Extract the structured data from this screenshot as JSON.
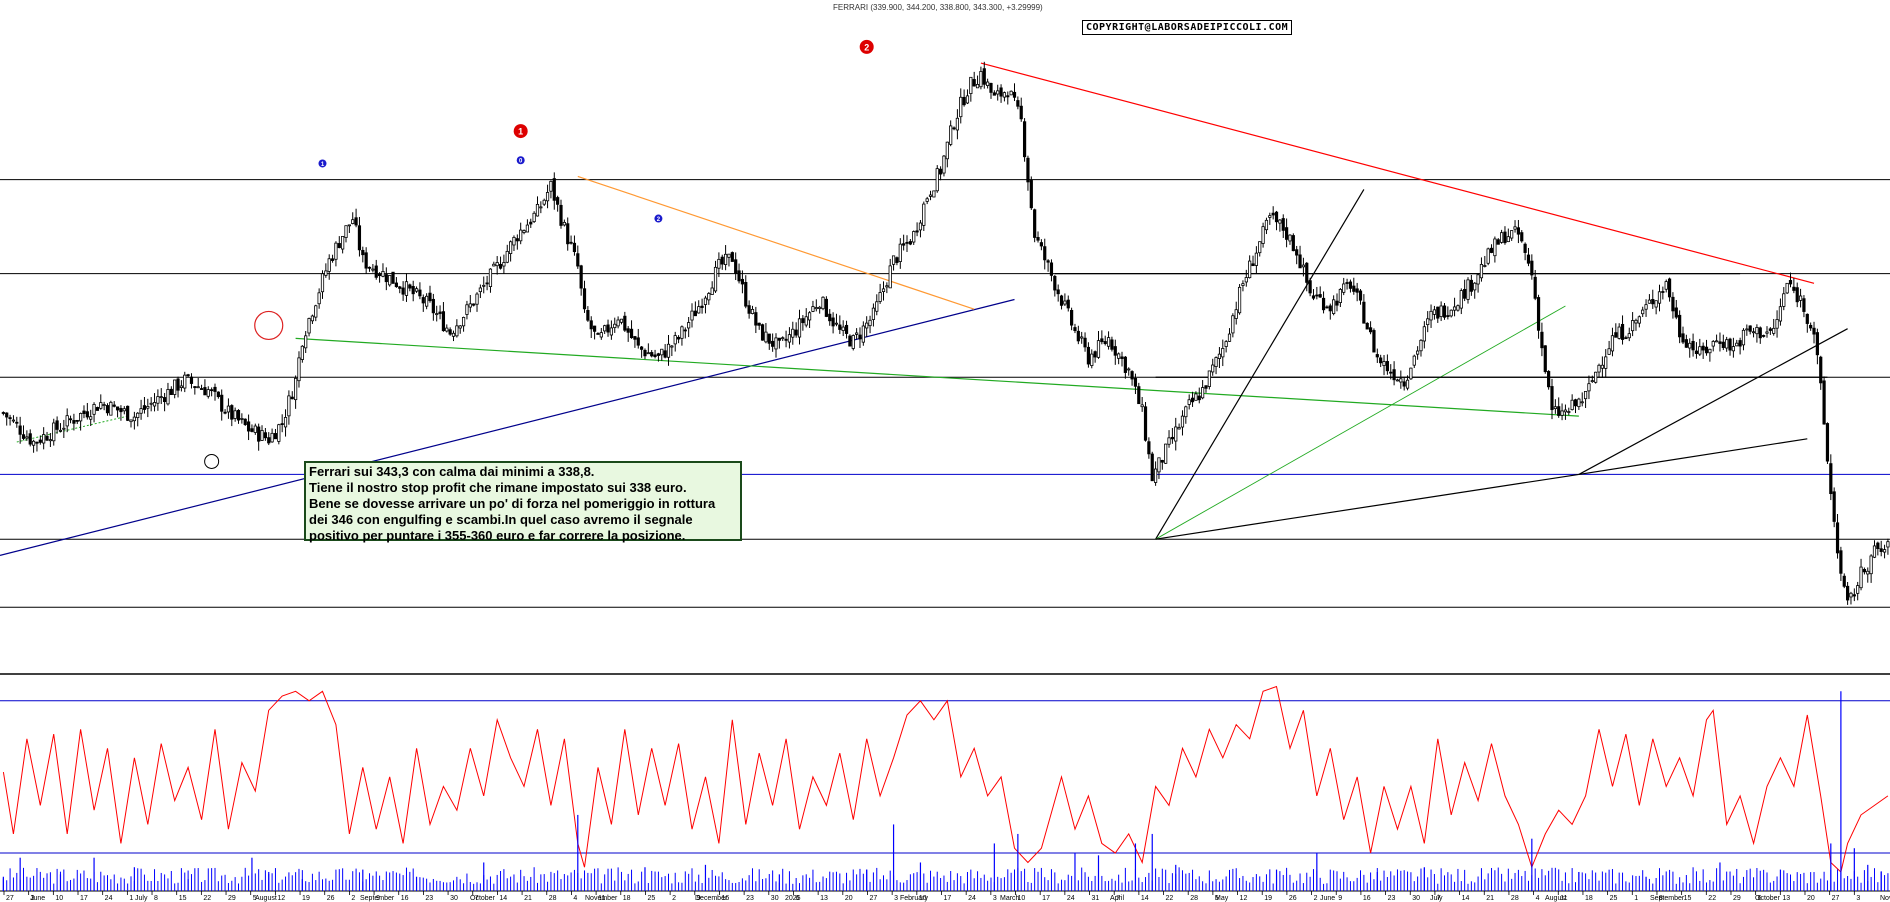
{
  "header": {
    "title": "FERRARI (339.900, 344.200, 338.800, 343.300, +3.29999)",
    "copyright": "COPYRIGHT@LABORSADEIPICCOLI.COM"
  },
  "comment": {
    "lines": [
      "Ferrari sui 343,3 con calma dai minimi a 338,8.",
      "Tiene il nostro stop profit che rimane impostato sui 338 euro.",
      "Bene se dovesse arrivare un po' di forza nel pomeriggio in rottura",
      "dei 346 con engulfing e scambi.In quel caso avremo il segnale",
      "positivo per puntare i 355-360 euro e far correre la posizione."
    ]
  },
  "colors": {
    "candle": "#000000",
    "resistance_trendline": "#ff0000",
    "support_trendline": "#00008b",
    "orange_trendline": "#ff9933",
    "green_trendline": "#22aa22",
    "horizontal_levels_black": "#000000",
    "horizontal_levels_blue": "#0000cc",
    "oscillator": "#ff0000",
    "volume": "#0000ff",
    "comment_bg": "#e8f8e0"
  },
  "wave_labels": [
    {
      "label": "1",
      "style": "blue-small"
    },
    {
      "label": "0",
      "style": "blue-small"
    },
    {
      "label": "1",
      "style": "red-big"
    },
    {
      "label": "2",
      "style": "blue-small"
    },
    {
      "label": "2",
      "style": "red-big"
    }
  ],
  "chart_data": [
    {
      "type": "candlestick",
      "symbol": "FERRARI",
      "ylim": [
        305,
        510
      ],
      "yticks": [
        310,
        315,
        320,
        325,
        330,
        335,
        340,
        345,
        350,
        355,
        360,
        365,
        370,
        375,
        380,
        385,
        390,
        395,
        400,
        405,
        410,
        415,
        420,
        425,
        430,
        435,
        440,
        445,
        450,
        455,
        460,
        465,
        470,
        475,
        480,
        485,
        490,
        495,
        500,
        505
      ],
      "x_day_labels": [
        "27",
        "3",
        "10",
        "17",
        "24",
        "1",
        "8",
        "15",
        "22",
        "29",
        "5",
        "12",
        "19",
        "26",
        "2",
        "9",
        "16",
        "23",
        "30",
        "7",
        "14",
        "21",
        "28",
        "4",
        "11",
        "18",
        "25",
        "2",
        "9",
        "16",
        "23",
        "30",
        "6",
        "13",
        "20",
        "27",
        "3",
        "10",
        "17",
        "24",
        "3",
        "10",
        "17",
        "24",
        "31",
        "7",
        "14",
        "22",
        "28",
        "5",
        "12",
        "19",
        "26",
        "2",
        "9",
        "16",
        "23",
        "30",
        "7",
        "14",
        "21",
        "28",
        "4",
        "11",
        "18",
        "25",
        "1",
        "8",
        "15",
        "22",
        "29",
        "6",
        "13",
        "20",
        "27",
        "3"
      ],
      "x_month_labels": [
        "June",
        "July",
        "August",
        "September",
        "October",
        "November",
        "December",
        "2025",
        "February",
        "March",
        "April",
        "May",
        "June",
        "July",
        "August",
        "September",
        "October",
        "November"
      ],
      "horizontal_levels": [
        {
          "value": 457,
          "color": "black"
        },
        {
          "value": 428,
          "color": "black"
        },
        {
          "value": 396,
          "color": "black"
        },
        {
          "value": 366,
          "color": "blue"
        },
        {
          "value": 346,
          "color": "black"
        },
        {
          "value": 325,
          "color": "black"
        }
      ],
      "close_path": [
        [
          1,
          385
        ],
        [
          10,
          376
        ],
        [
          20,
          382
        ],
        [
          30,
          388
        ],
        [
          40,
          384
        ],
        [
          48,
          390
        ],
        [
          55,
          395
        ],
        [
          62,
          392
        ],
        [
          68,
          385
        ],
        [
          74,
          380
        ],
        [
          80,
          377
        ],
        [
          84,
          382
        ],
        [
          88,
          395
        ],
        [
          90,
          408
        ],
        [
          94,
          420
        ],
        [
          98,
          432
        ],
        [
          102,
          440
        ],
        [
          105,
          445
        ],
        [
          108,
          432
        ],
        [
          114,
          428
        ],
        [
          120,
          424
        ],
        [
          128,
          418
        ],
        [
          134,
          410
        ],
        [
          140,
          418
        ],
        [
          148,
          430
        ],
        [
          154,
          440
        ],
        [
          160,
          447
        ],
        [
          164,
          455
        ],
        [
          168,
          442
        ],
        [
          172,
          430
        ],
        [
          174,
          415
        ],
        [
          178,
          407
        ],
        [
          184,
          415
        ],
        [
          190,
          405
        ],
        [
          196,
          402
        ],
        [
          202,
          408
        ],
        [
          208,
          418
        ],
        [
          214,
          430
        ],
        [
          218,
          433
        ],
        [
          222,
          420
        ],
        [
          226,
          410
        ],
        [
          232,
          405
        ],
        [
          238,
          412
        ],
        [
          244,
          420
        ],
        [
          250,
          410
        ],
        [
          254,
          407
        ],
        [
          260,
          415
        ],
        [
          266,
          432
        ],
        [
          272,
          440
        ],
        [
          276,
          452
        ],
        [
          280,
          460
        ],
        [
          284,
          475
        ],
        [
          288,
          485
        ],
        [
          292,
          490
        ],
        [
          296,
          482
        ],
        [
          300,
          485
        ],
        [
          304,
          475
        ],
        [
          308,
          440
        ],
        [
          312,
          430
        ],
        [
          316,
          420
        ],
        [
          320,
          410
        ],
        [
          324,
          402
        ],
        [
          330,
          408
        ],
        [
          336,
          398
        ],
        [
          340,
          385
        ],
        [
          343,
          365
        ],
        [
          348,
          375
        ],
        [
          354,
          387
        ],
        [
          358,
          392
        ],
        [
          364,
          405
        ],
        [
          370,
          425
        ],
        [
          374,
          435
        ],
        [
          378,
          445
        ],
        [
          382,
          442
        ],
        [
          386,
          435
        ],
        [
          390,
          422
        ],
        [
          396,
          418
        ],
        [
          402,
          425
        ],
        [
          406,
          415
        ],
        [
          410,
          402
        ],
        [
          414,
          398
        ],
        [
          418,
          395
        ],
        [
          422,
          405
        ],
        [
          426,
          415
        ],
        [
          432,
          418
        ],
        [
          438,
          425
        ],
        [
          444,
          435
        ],
        [
          448,
          440
        ],
        [
          452,
          440
        ],
        [
          456,
          428
        ],
        [
          459,
          405
        ],
        [
          462,
          385
        ],
        [
          466,
          385
        ],
        [
          472,
          390
        ],
        [
          476,
          400
        ],
        [
          480,
          408
        ],
        [
          486,
          412
        ],
        [
          492,
          420
        ],
        [
          496,
          425
        ],
        [
          500,
          410
        ],
        [
          506,
          403
        ],
        [
          512,
          408
        ],
        [
          516,
          405
        ],
        [
          520,
          410
        ],
        [
          528,
          410
        ],
        [
          532,
          425
        ],
        [
          536,
          420
        ],
        [
          540,
          410
        ],
        [
          542,
          392
        ],
        [
          545,
          360
        ],
        [
          548,
          335
        ],
        [
          550,
          325
        ],
        [
          554,
          335
        ],
        [
          558,
          342
        ],
        [
          562,
          343
        ]
      ],
      "annotations_text": [
        "Ferrari sui 343,3 con calma dai minimi a 338,8."
      ]
    },
    {
      "type": "line",
      "name": "",
      "ylim": [
        0,
        45000
      ],
      "yticks": [
        5000,
        10000,
        15000,
        20000,
        25000,
        30000,
        35000,
        40000,
        45000
      ],
      "horizontal_levels": [
        40000,
        8000
      ],
      "points": [
        [
          1,
          25000
        ],
        [
          4,
          12000
        ],
        [
          8,
          32000
        ],
        [
          12,
          18000
        ],
        [
          16,
          33000
        ],
        [
          20,
          12000
        ],
        [
          24,
          34000
        ],
        [
          28,
          17000
        ],
        [
          32,
          30000
        ],
        [
          36,
          10000
        ],
        [
          40,
          28000
        ],
        [
          44,
          14000
        ],
        [
          48,
          31000
        ],
        [
          52,
          19000
        ],
        [
          56,
          26000
        ],
        [
          60,
          15000
        ],
        [
          64,
          34000
        ],
        [
          68,
          13000
        ],
        [
          72,
          27000
        ],
        [
          76,
          21000
        ],
        [
          80,
          38000
        ],
        [
          84,
          41000
        ],
        [
          88,
          42000
        ],
        [
          92,
          40000
        ],
        [
          96,
          42000
        ],
        [
          100,
          35000
        ],
        [
          104,
          12000
        ],
        [
          108,
          26000
        ],
        [
          112,
          13000
        ],
        [
          116,
          24000
        ],
        [
          120,
          10000
        ],
        [
          124,
          30000
        ],
        [
          128,
          14000
        ],
        [
          132,
          22000
        ],
        [
          136,
          17000
        ],
        [
          140,
          30000
        ],
        [
          144,
          20000
        ],
        [
          148,
          36000
        ],
        [
          152,
          28000
        ],
        [
          156,
          22000
        ],
        [
          160,
          34000
        ],
        [
          164,
          18000
        ],
        [
          168,
          32000
        ],
        [
          172,
          10000
        ],
        [
          174,
          5000
        ],
        [
          178,
          26000
        ],
        [
          182,
          14000
        ],
        [
          186,
          34000
        ],
        [
          190,
          16000
        ],
        [
          194,
          30000
        ],
        [
          198,
          18000
        ],
        [
          202,
          31000
        ],
        [
          206,
          13000
        ],
        [
          210,
          24000
        ],
        [
          214,
          10000
        ],
        [
          218,
          36000
        ],
        [
          222,
          14000
        ],
        [
          226,
          29000
        ],
        [
          230,
          18000
        ],
        [
          234,
          32000
        ],
        [
          238,
          13000
        ],
        [
          242,
          24000
        ],
        [
          246,
          18000
        ],
        [
          250,
          29000
        ],
        [
          254,
          15000
        ],
        [
          258,
          32000
        ],
        [
          262,
          20000
        ],
        [
          266,
          28000
        ],
        [
          270,
          37000
        ],
        [
          274,
          40000
        ],
        [
          278,
          36000
        ],
        [
          282,
          40000
        ],
        [
          286,
          24000
        ],
        [
          290,
          30000
        ],
        [
          294,
          20000
        ],
        [
          298,
          24000
        ],
        [
          302,
          9000
        ],
        [
          306,
          6000
        ],
        [
          310,
          9000
        ],
        [
          316,
          24000
        ],
        [
          320,
          13000
        ],
        [
          324,
          20000
        ],
        [
          328,
          10000
        ],
        [
          332,
          8000
        ],
        [
          336,
          12000
        ],
        [
          340,
          6000
        ],
        [
          344,
          22000
        ],
        [
          348,
          18000
        ],
        [
          352,
          30000
        ],
        [
          356,
          24000
        ],
        [
          360,
          34000
        ],
        [
          364,
          28000
        ],
        [
          368,
          35000
        ],
        [
          372,
          32000
        ],
        [
          376,
          42000
        ],
        [
          380,
          43000
        ],
        [
          384,
          30000
        ],
        [
          388,
          38000
        ],
        [
          392,
          20000
        ],
        [
          396,
          30000
        ],
        [
          400,
          15000
        ],
        [
          404,
          24000
        ],
        [
          408,
          8000
        ],
        [
          412,
          22000
        ],
        [
          416,
          13000
        ],
        [
          420,
          22000
        ],
        [
          424,
          10000
        ],
        [
          428,
          32000
        ],
        [
          432,
          16000
        ],
        [
          436,
          27000
        ],
        [
          440,
          19000
        ],
        [
          444,
          31000
        ],
        [
          448,
          20000
        ],
        [
          452,
          14000
        ],
        [
          456,
          5000
        ],
        [
          460,
          12000
        ],
        [
          464,
          17000
        ],
        [
          468,
          14000
        ],
        [
          472,
          20000
        ],
        [
          476,
          34000
        ],
        [
          480,
          22000
        ],
        [
          484,
          33000
        ],
        [
          488,
          18000
        ],
        [
          492,
          32000
        ],
        [
          496,
          22000
        ],
        [
          500,
          28000
        ],
        [
          504,
          20000
        ],
        [
          508,
          36000
        ],
        [
          510,
          38000
        ],
        [
          514,
          14000
        ],
        [
          518,
          20000
        ],
        [
          522,
          10000
        ],
        [
          526,
          22000
        ],
        [
          530,
          28000
        ],
        [
          534,
          22000
        ],
        [
          538,
          37000
        ],
        [
          542,
          20000
        ],
        [
          545,
          6000
        ],
        [
          548,
          4000
        ],
        [
          550,
          10000
        ],
        [
          554,
          16000
        ],
        [
          558,
          18000
        ],
        [
          562,
          20000
        ]
      ]
    },
    {
      "type": "bar",
      "name": "volume",
      "ylim": [
        0,
        45000
      ],
      "bars": [
        [
          1,
          3000
        ],
        [
          6,
          7000
        ],
        [
          18,
          3500
        ],
        [
          28,
          7000
        ],
        [
          40,
          5000
        ],
        [
          56,
          2500
        ],
        [
          75,
          7000
        ],
        [
          80,
          4000
        ],
        [
          90,
          2500
        ],
        [
          108,
          4500
        ],
        [
          124,
          3000
        ],
        [
          144,
          6000
        ],
        [
          172,
          16000
        ],
        [
          192,
          5000
        ],
        [
          210,
          5500
        ],
        [
          232,
          3500
        ],
        [
          258,
          4500
        ],
        [
          266,
          14000
        ],
        [
          274,
          6000
        ],
        [
          296,
          10000
        ],
        [
          303,
          12000
        ],
        [
          320,
          8000
        ],
        [
          327,
          7500
        ],
        [
          338,
          10000
        ],
        [
          343,
          12000
        ],
        [
          350,
          5500
        ],
        [
          380,
          4500
        ],
        [
          392,
          8000
        ],
        [
          410,
          4000
        ],
        [
          424,
          5000
        ],
        [
          456,
          11000
        ],
        [
          470,
          4000
        ],
        [
          490,
          3000
        ],
        [
          512,
          6000
        ],
        [
          530,
          4500
        ],
        [
          545,
          10000
        ],
        [
          548,
          42000
        ],
        [
          552,
          9000
        ],
        [
          556,
          5500
        ],
        [
          560,
          4000
        ]
      ]
    }
  ]
}
